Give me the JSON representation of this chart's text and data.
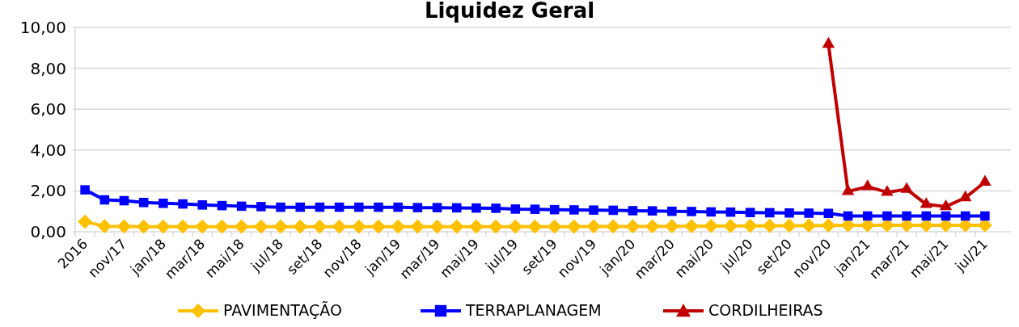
{
  "chart_data": {
    "type": "line",
    "title": "Liquidez Geral",
    "categories": [
      "2016",
      null,
      "nov/17",
      null,
      "jan/18",
      null,
      "mar/18",
      null,
      "mai/18",
      null,
      "jul/18",
      null,
      "set/18",
      null,
      "nov/18",
      null,
      "jan/19",
      null,
      "mar/19",
      null,
      "mai/19",
      null,
      "jul/19",
      null,
      "set/19",
      null,
      "nov/19",
      null,
      "jan/20",
      null,
      "mar/20",
      null,
      "mai/20",
      null,
      "jul/20",
      null,
      "set/20",
      null,
      "nov/20",
      null,
      "jan/21",
      null,
      "mar/21",
      null,
      "mai/21",
      null,
      "jul/21"
    ],
    "series": [
      {
        "name": "PAVIMENTAÇÃO",
        "color": "#ffc000",
        "marker": "diamond",
        "values": [
          0.49,
          0.27,
          0.26,
          0.25,
          0.25,
          0.25,
          0.25,
          0.25,
          0.25,
          0.25,
          0.25,
          0.25,
          0.25,
          0.25,
          0.25,
          0.25,
          0.25,
          0.25,
          0.25,
          0.25,
          0.25,
          0.25,
          0.25,
          0.25,
          0.25,
          0.25,
          0.26,
          0.26,
          0.26,
          0.26,
          0.27,
          0.27,
          0.28,
          0.28,
          0.29,
          0.29,
          0.3,
          0.3,
          0.31,
          0.32,
          0.32,
          0.32,
          0.32,
          0.32,
          0.32,
          0.32,
          0.32
        ]
      },
      {
        "name": "TERRAPLANAGEM",
        "color": "#0000ff",
        "marker": "square",
        "values": [
          2.05,
          1.56,
          1.52,
          1.43,
          1.39,
          1.36,
          1.31,
          1.28,
          1.25,
          1.23,
          1.2,
          1.2,
          1.2,
          1.2,
          1.2,
          1.2,
          1.2,
          1.18,
          1.18,
          1.17,
          1.16,
          1.15,
          1.11,
          1.1,
          1.08,
          1.07,
          1.06,
          1.05,
          1.03,
          1.02,
          1.0,
          0.99,
          0.97,
          0.96,
          0.94,
          0.93,
          0.92,
          0.91,
          0.9,
          0.77,
          0.77,
          0.77,
          0.77,
          0.77,
          0.77,
          0.77,
          0.77
        ]
      },
      {
        "name": "CORDILHEIRAS",
        "color": "#c00000",
        "marker": "triangle",
        "values": [
          null,
          null,
          null,
          null,
          null,
          null,
          null,
          null,
          null,
          null,
          null,
          null,
          null,
          null,
          null,
          null,
          null,
          null,
          null,
          null,
          null,
          null,
          null,
          null,
          null,
          null,
          null,
          null,
          null,
          null,
          null,
          null,
          null,
          null,
          null,
          null,
          null,
          null,
          9.18,
          1.97,
          2.21,
          1.93,
          2.08,
          1.34,
          1.23,
          1.67,
          2.43
        ]
      }
    ],
    "ylim": [
      0,
      10
    ],
    "yticks": [
      {
        "value": 0,
        "label": "0,00"
      },
      {
        "value": 2,
        "label": "2,00"
      },
      {
        "value": 4,
        "label": "4,00"
      },
      {
        "value": 6,
        "label": "6,00"
      },
      {
        "value": 8,
        "label": "8,00"
      },
      {
        "value": 10,
        "label": "10,00"
      }
    ],
    "grid": "y",
    "legend": "bottom"
  }
}
